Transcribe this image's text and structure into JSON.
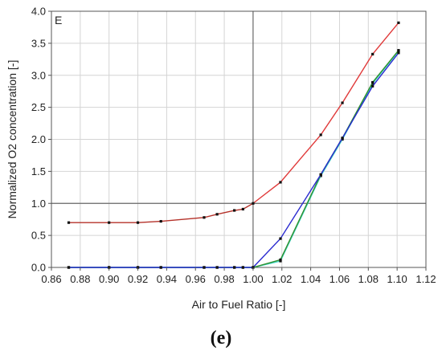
{
  "chart_data": {
    "type": "line",
    "panel_label": "E",
    "xlabel": "Air to Fuel Ratio [-]",
    "ylabel": "Normalized O2 concentration [-]",
    "xlim": [
      0.86,
      1.12
    ],
    "ylim": [
      0.0,
      4.0
    ],
    "x_ticks": [
      0.86,
      0.88,
      0.9,
      0.92,
      0.94,
      0.96,
      0.98,
      1.0,
      1.02,
      1.04,
      1.06,
      1.08,
      1.1,
      1.12
    ],
    "x_tick_labels": [
      "0.86",
      "0.88",
      "0.90",
      "0.92",
      "0.94",
      "0.96",
      "0.98",
      "1.00",
      "1.02",
      "1.04",
      "1.06",
      "1.08",
      "1.10",
      "1.12"
    ],
    "y_ticks": [
      0.0,
      0.5,
      1.0,
      1.5,
      2.0,
      2.5,
      3.0,
      3.5,
      4.0
    ],
    "y_tick_labels": [
      "0.0",
      "0.5",
      "1.0",
      "1.5",
      "2.0",
      "2.5",
      "3.0",
      "3.5",
      "4.0"
    ],
    "grid": true,
    "reference_lines": {
      "x": 1.0,
      "y": 1.0
    },
    "series": [
      {
        "color": "#e03a3a",
        "color_lean_side": "#b5322a",
        "x": [
          0.872,
          0.9,
          0.92,
          0.936,
          0.966,
          0.975,
          0.987,
          0.993,
          1.0,
          1.019,
          1.047,
          1.062,
          1.083,
          1.101
        ],
        "y": [
          0.7,
          0.7,
          0.7,
          0.72,
          0.78,
          0.83,
          0.89,
          0.91,
          1.0,
          1.33,
          2.07,
          2.57,
          3.33,
          3.82
        ]
      },
      {
        "color": "#2a2ad0",
        "x": [
          0.872,
          0.9,
          0.92,
          0.936,
          0.966,
          0.975,
          0.987,
          0.993,
          1.0,
          1.019,
          1.047,
          1.062,
          1.083,
          1.101
        ],
        "y": [
          0.0,
          0.0,
          0.0,
          0.0,
          0.0,
          0.0,
          0.0,
          0.0,
          0.0,
          0.45,
          1.45,
          2.02,
          2.83,
          3.35
        ]
      },
      {
        "color": "#2e8f2e",
        "x": [
          0.872,
          0.9,
          0.92,
          0.936,
          0.966,
          0.975,
          0.987,
          0.993,
          1.0,
          1.019,
          1.047,
          1.062,
          1.083,
          1.101
        ],
        "y": [
          0.0,
          0.0,
          0.0,
          0.0,
          0.0,
          0.0,
          0.0,
          0.0,
          0.0,
          0.12,
          1.45,
          2.02,
          2.89,
          3.39
        ]
      },
      {
        "color": "#3fd6c6",
        "x": [
          0.872,
          0.9,
          0.92,
          0.936,
          0.966,
          0.975,
          0.987,
          0.993,
          1.0,
          1.019,
          1.047,
          1.062,
          1.083,
          1.101
        ],
        "y": [
          0.0,
          0.0,
          0.0,
          0.0,
          0.0,
          0.0,
          0.0,
          0.0,
          0.0,
          0.1,
          1.43,
          2.0,
          2.87,
          3.38
        ]
      }
    ]
  },
  "caption": "(e)"
}
